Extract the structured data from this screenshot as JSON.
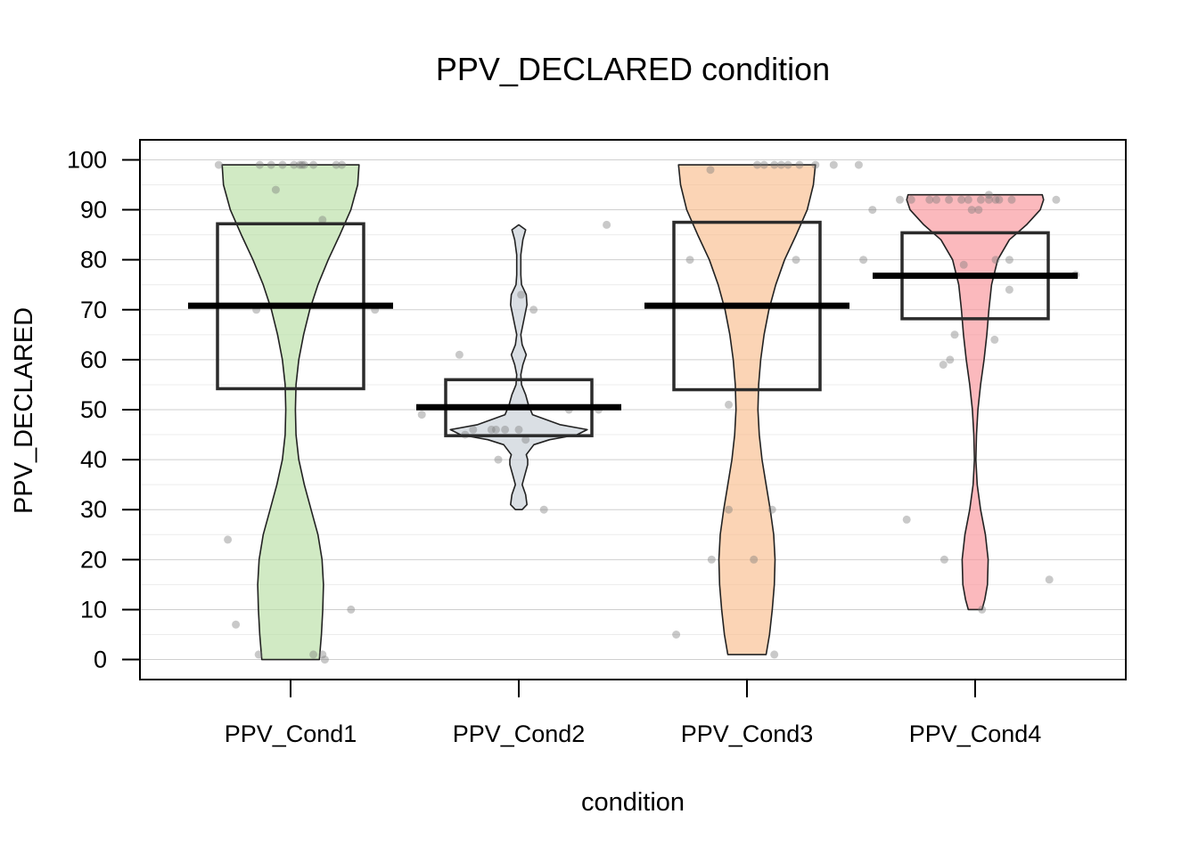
{
  "chart_data": {
    "type": "pirateplot",
    "title": "PPV_DECLARED condition",
    "xlabel": "condition",
    "ylabel": "PPV_DECLARED",
    "ylim": [
      -4,
      104
    ],
    "yticks": [
      0,
      10,
      20,
      30,
      40,
      50,
      60,
      70,
      80,
      90,
      100
    ],
    "grid": true,
    "categories": [
      "PPV_Cond1",
      "PPV_Cond2",
      "PPV_Cond3",
      "PPV_Cond4"
    ],
    "series": [
      {
        "category": "PPV_Cond1",
        "color": "#b9dfa4",
        "mean": 70.8,
        "box_low": 54.2,
        "box_high": 87.2,
        "density": [
          [
            0,
            0.42
          ],
          [
            5,
            0.45
          ],
          [
            10,
            0.47
          ],
          [
            15,
            0.48
          ],
          [
            20,
            0.46
          ],
          [
            25,
            0.4
          ],
          [
            30,
            0.3
          ],
          [
            35,
            0.2
          ],
          [
            40,
            0.12
          ],
          [
            45,
            0.08
          ],
          [
            50,
            0.07
          ],
          [
            55,
            0.08
          ],
          [
            60,
            0.12
          ],
          [
            65,
            0.19
          ],
          [
            70,
            0.28
          ],
          [
            75,
            0.4
          ],
          [
            80,
            0.55
          ],
          [
            85,
            0.72
          ],
          [
            90,
            0.88
          ],
          [
            95,
            0.98
          ],
          [
            99,
            1.0
          ]
        ],
        "points": [
          [
            -0.63,
            99
          ],
          [
            -0.27,
            99
          ],
          [
            -0.17,
            99
          ],
          [
            -0.07,
            99
          ],
          [
            0.03,
            99
          ],
          [
            0.08,
            99
          ],
          [
            0.1,
            99
          ],
          [
            0.2,
            99
          ],
          [
            0.12,
            99
          ],
          [
            -0.13,
            94
          ],
          [
            0.4,
            99
          ],
          [
            0.45,
            99
          ],
          [
            0.28,
            88
          ],
          [
            -0.3,
            70
          ],
          [
            0.74,
            70
          ],
          [
            -0.55,
            24
          ],
          [
            -0.48,
            7
          ],
          [
            -0.28,
            1
          ],
          [
            0.2,
            1
          ],
          [
            0.28,
            1
          ],
          [
            0.3,
            0
          ],
          [
            0.53,
            10
          ]
        ]
      },
      {
        "category": "PPV_Cond2",
        "color": "#c6ced6",
        "mean": 50.5,
        "box_low": 44.8,
        "box_high": 56.0,
        "density": [
          [
            30,
            0.05
          ],
          [
            31,
            0.12
          ],
          [
            33,
            0.1
          ],
          [
            35,
            0.05
          ],
          [
            37,
            0.09
          ],
          [
            39,
            0.13
          ],
          [
            40,
            0.13
          ],
          [
            41,
            0.11
          ],
          [
            43,
            0.22
          ],
          [
            44,
            0.45
          ],
          [
            45,
            0.85
          ],
          [
            46,
            1.0
          ],
          [
            47,
            0.6
          ],
          [
            49,
            0.2
          ],
          [
            51,
            0.14
          ],
          [
            53,
            0.1
          ],
          [
            55,
            0.04
          ],
          [
            57,
            0.03
          ],
          [
            59,
            0.06
          ],
          [
            61,
            0.11
          ],
          [
            63,
            0.05
          ],
          [
            65,
            0.03
          ],
          [
            67,
            0.06
          ],
          [
            69,
            0.09
          ],
          [
            71,
            0.12
          ],
          [
            73,
            0.11
          ],
          [
            75,
            0.04
          ],
          [
            77,
            0.03
          ],
          [
            79,
            0.03
          ],
          [
            81,
            0.03
          ],
          [
            84,
            0.06
          ],
          [
            86,
            0.1
          ],
          [
            87,
            0.0
          ]
        ],
        "points": [
          [
            -0.85,
            49
          ],
          [
            -0.52,
            61
          ],
          [
            -0.47,
            45
          ],
          [
            -0.4,
            46
          ],
          [
            -0.24,
            46
          ],
          [
            -0.2,
            46
          ],
          [
            -0.12,
            46
          ],
          [
            0.0,
            46
          ],
          [
            -0.18,
            40
          ],
          [
            0.06,
            44
          ],
          [
            0.02,
            73
          ],
          [
            0.13,
            70
          ],
          [
            0.22,
            30
          ],
          [
            0.44,
            50
          ],
          [
            0.77,
            87
          ],
          [
            0.7,
            50
          ]
        ]
      },
      {
        "category": "PPV_Cond3",
        "color": "#f9bd8e",
        "mean": 70.8,
        "box_low": 54.0,
        "box_high": 87.5,
        "density": [
          [
            1,
            0.28
          ],
          [
            5,
            0.33
          ],
          [
            10,
            0.37
          ],
          [
            15,
            0.4
          ],
          [
            20,
            0.41
          ],
          [
            25,
            0.39
          ],
          [
            30,
            0.34
          ],
          [
            35,
            0.28
          ],
          [
            40,
            0.22
          ],
          [
            45,
            0.18
          ],
          [
            50,
            0.16
          ],
          [
            55,
            0.17
          ],
          [
            60,
            0.2
          ],
          [
            65,
            0.25
          ],
          [
            70,
            0.32
          ],
          [
            75,
            0.42
          ],
          [
            80,
            0.55
          ],
          [
            85,
            0.72
          ],
          [
            90,
            0.88
          ],
          [
            95,
            0.97
          ],
          [
            99,
            1.0
          ]
        ],
        "points": [
          [
            -0.62,
            5
          ],
          [
            -0.32,
            98
          ],
          [
            -0.5,
            80
          ],
          [
            -0.16,
            51
          ],
          [
            -0.16,
            30
          ],
          [
            -0.31,
            20
          ],
          [
            0.06,
            20
          ],
          [
            0.22,
            30
          ],
          [
            0.24,
            1
          ],
          [
            0.09,
            99
          ],
          [
            0.15,
            99
          ],
          [
            0.24,
            99
          ],
          [
            0.3,
            99
          ],
          [
            0.36,
            99
          ],
          [
            0.46,
            99
          ],
          [
            0.6,
            99
          ],
          [
            0.76,
            99
          ],
          [
            0.98,
            99
          ],
          [
            0.43,
            80
          ]
        ]
      },
      {
        "category": "PPV_Cond4",
        "color": "#f99499",
        "mean": 76.8,
        "box_low": 68.2,
        "box_high": 85.4,
        "density": [
          [
            10,
            0.1
          ],
          [
            12,
            0.14
          ],
          [
            15,
            0.18
          ],
          [
            20,
            0.19
          ],
          [
            25,
            0.15
          ],
          [
            30,
            0.08
          ],
          [
            35,
            0.03
          ],
          [
            40,
            0.01
          ],
          [
            45,
            0.02
          ],
          [
            50,
            0.04
          ],
          [
            55,
            0.08
          ],
          [
            60,
            0.13
          ],
          [
            65,
            0.17
          ],
          [
            70,
            0.2
          ],
          [
            75,
            0.24
          ],
          [
            80,
            0.33
          ],
          [
            84,
            0.5
          ],
          [
            87,
            0.75
          ],
          [
            90,
            0.95
          ],
          [
            92,
            1.0
          ],
          [
            93,
            0.98
          ]
        ],
        "points": [
          [
            -0.98,
            80
          ],
          [
            -0.9,
            90
          ],
          [
            -0.66,
            92
          ],
          [
            -0.56,
            92
          ],
          [
            -0.4,
            92
          ],
          [
            -0.34,
            92
          ],
          [
            -0.23,
            92
          ],
          [
            -0.12,
            92
          ],
          [
            -0.06,
            92
          ],
          [
            0.05,
            92
          ],
          [
            0.12,
            92
          ],
          [
            0.21,
            92
          ],
          [
            -0.03,
            90
          ],
          [
            0.03,
            90
          ],
          [
            0.12,
            93
          ],
          [
            0.18,
            92
          ],
          [
            0.32,
            92
          ],
          [
            0.18,
            80
          ],
          [
            0.3,
            80
          ],
          [
            -0.1,
            79
          ],
          [
            0.3,
            74
          ],
          [
            -0.18,
            65
          ],
          [
            -0.22,
            60
          ],
          [
            -0.28,
            59
          ],
          [
            0.17,
            64
          ],
          [
            -0.6,
            28
          ],
          [
            -0.27,
            20
          ],
          [
            0.06,
            10
          ],
          [
            0.71,
            92
          ],
          [
            0.88,
            77
          ],
          [
            0.65,
            16
          ]
        ]
      }
    ]
  }
}
